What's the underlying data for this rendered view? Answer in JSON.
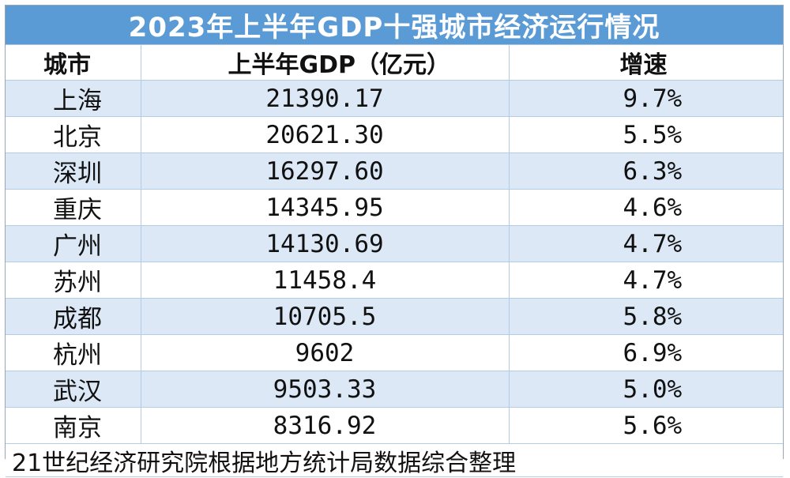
{
  "title": "2023年上半年GDP十强城市经济运行情况",
  "columns": {
    "city": "城市",
    "gdp": "上半年GDP（亿元）",
    "growth": "增速"
  },
  "rows": [
    {
      "city": "上海",
      "gdp": "21390.17",
      "growth": "9.7%"
    },
    {
      "city": "北京",
      "gdp": "20621.30",
      "growth": "5.5%"
    },
    {
      "city": "深圳",
      "gdp": "16297.60",
      "growth": "6.3%"
    },
    {
      "city": "重庆",
      "gdp": "14345.95",
      "growth": "4.6%"
    },
    {
      "city": "广州",
      "gdp": "14130.69",
      "growth": "4.7%"
    },
    {
      "city": "苏州",
      "gdp": "11458.4",
      "growth": "4.7%"
    },
    {
      "city": "成都",
      "gdp": "10705.5",
      "growth": "5.8%"
    },
    {
      "city": "杭州",
      "gdp": "9602",
      "growth": "6.9%"
    },
    {
      "city": "武汉",
      "gdp": "9503.33",
      "growth": "5.0%"
    },
    {
      "city": "南京",
      "gdp": "8316.92",
      "growth": "5.6%"
    }
  ],
  "source": "21世纪经济研究院根据地方统计局数据综合整理",
  "colors": {
    "title_bg": "#5b9bd5",
    "alt_row_bg": "#dce8f6",
    "grid": "#b4cbe6"
  }
}
